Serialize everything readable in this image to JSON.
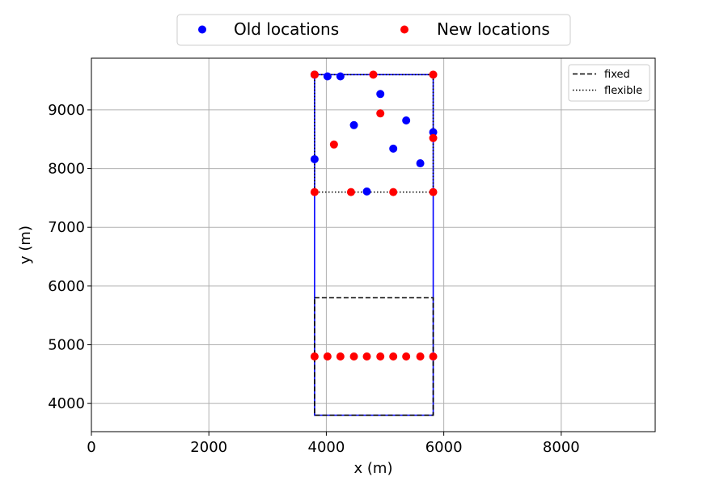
{
  "chart_data": {
    "type": "scatter",
    "xlabel": "x (m)",
    "ylabel": "y (m)",
    "xlim": [
      0,
      9600
    ],
    "ylim": [
      3520,
      9880
    ],
    "xticks": [
      0,
      2000,
      4000,
      6000,
      8000
    ],
    "yticks": [
      4000,
      5000,
      6000,
      7000,
      8000,
      9000
    ],
    "grid": true,
    "colors": {
      "old": "#0000ff",
      "new": "#ff0000",
      "outline": "#0000ff",
      "dashed": "#000000"
    },
    "series": [
      {
        "name": "Old locations",
        "color": "#0000ff",
        "points": [
          {
            "x": 3800,
            "y": 9600
          },
          {
            "x": 4020,
            "y": 9570
          },
          {
            "x": 4240,
            "y": 9570
          },
          {
            "x": 4920,
            "y": 9270
          },
          {
            "x": 4470,
            "y": 8740
          },
          {
            "x": 5360,
            "y": 8820
          },
          {
            "x": 5820,
            "y": 8620
          },
          {
            "x": 5140,
            "y": 8340
          },
          {
            "x": 5600,
            "y": 8090
          },
          {
            "x": 3800,
            "y": 8160
          },
          {
            "x": 4690,
            "y": 7610
          }
        ]
      },
      {
        "name": "New locations",
        "color": "#ff0000",
        "points": [
          {
            "x": 3800,
            "y": 9600
          },
          {
            "x": 4800,
            "y": 9600
          },
          {
            "x": 5820,
            "y": 9600
          },
          {
            "x": 4920,
            "y": 8940
          },
          {
            "x": 4130,
            "y": 8410
          },
          {
            "x": 5820,
            "y": 8520
          },
          {
            "x": 3800,
            "y": 7600
          },
          {
            "x": 4420,
            "y": 7600
          },
          {
            "x": 5140,
            "y": 7600
          },
          {
            "x": 5820,
            "y": 7600
          },
          {
            "x": 3800,
            "y": 4800
          },
          {
            "x": 4020,
            "y": 4800
          },
          {
            "x": 4240,
            "y": 4800
          },
          {
            "x": 4470,
            "y": 4800
          },
          {
            "x": 4690,
            "y": 4800
          },
          {
            "x": 4920,
            "y": 4800
          },
          {
            "x": 5140,
            "y": 4800
          },
          {
            "x": 5360,
            "y": 4800
          },
          {
            "x": 5600,
            "y": 4800
          },
          {
            "x": 5820,
            "y": 4800
          }
        ]
      }
    ],
    "outline_rect": {
      "x0": 3800,
      "x1": 5820,
      "y0": 3800,
      "y1": 9600
    },
    "fixed_rect": {
      "x0": 3800,
      "x1": 5820,
      "y0": 3800,
      "y1": 5800
    },
    "flexible_rect": {
      "x0": 3800,
      "x1": 5820,
      "y0": 7600,
      "y1": 9600
    },
    "legend_top": {
      "placement": "top-center",
      "items": [
        {
          "label": "Old locations",
          "color": "#0000ff"
        },
        {
          "label": "New locations",
          "color": "#ff0000"
        }
      ]
    },
    "legend_inner": {
      "placement": "top-right",
      "items": [
        {
          "label": "fixed",
          "style": "dashed"
        },
        {
          "label": "flexible",
          "style": "dotted"
        }
      ]
    }
  }
}
